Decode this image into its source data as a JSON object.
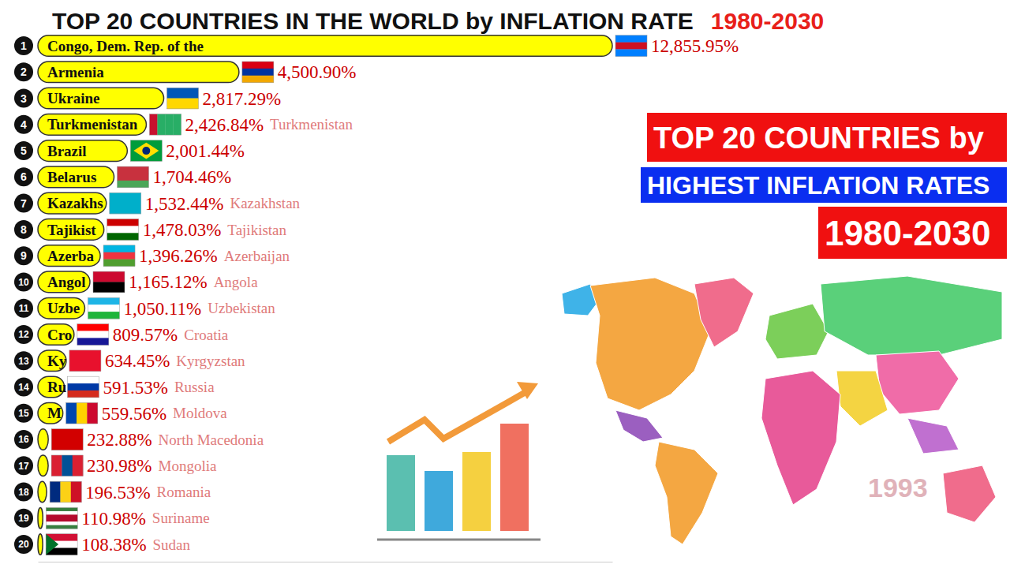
{
  "chart_data": {
    "type": "bar",
    "orientation": "horizontal",
    "title": "TOP 20 COUNTRIES IN THE WORLD by INFLATION RATE",
    "subtitle": "1980-2030",
    "annotations": [
      "TOP 20 COUNTRIES by",
      "HIGHEST INFLATION RATES",
      "1980-2030",
      "1993"
    ],
    "rank_labels": [
      "1",
      "2",
      "3",
      "4",
      "5",
      "6",
      "7",
      "8",
      "9",
      "10",
      "11",
      "12",
      "13",
      "14",
      "15",
      "16",
      "17",
      "18",
      "19",
      "20"
    ],
    "bar_labels": [
      "Congo, Dem. Rep. of the",
      "Armenia",
      "Ukraine",
      "Turkmenistan",
      "Brazil",
      "Belarus",
      "Kazakhs",
      "Tajikist",
      "Azerba",
      "Angol",
      "Uzbe",
      "Cro",
      "Ky",
      "Ru",
      "M",
      "",
      "",
      "",
      "",
      ""
    ],
    "categories": [
      null,
      null,
      null,
      "Turkmenistan",
      null,
      null,
      "Kazakhstan",
      "Tajikistan",
      "Azerbaijan",
      "Angola",
      "Uzbekistan",
      "Croatia",
      "Kyrgyzstan",
      "Russia",
      "Moldova",
      "North Macedonia",
      "Mongolia",
      "Romania",
      "Suriname",
      "Sudan"
    ],
    "values": [
      12855.95,
      4500.9,
      2817.29,
      2426.84,
      2001.44,
      1704.46,
      1532.44,
      1478.03,
      1396.26,
      1165.12,
      1050.11,
      809.57,
      634.45,
      591.53,
      559.56,
      232.88,
      230.98,
      196.53,
      110.98,
      108.38
    ],
    "value_labels": [
      "12,855.95%",
      "4,500.90%",
      "2,817.29%",
      "2,426.84%",
      "2,001.44%",
      "1,704.46%",
      "1,532.44%",
      "1,478.03%",
      "1,396.26%",
      "1,165.12%",
      "1,050.11%",
      "809.57%",
      "634.45%",
      "591.53%",
      "559.56%",
      "232.88%",
      "230.98%",
      "196.53%",
      "110.98%",
      "108.38%"
    ],
    "data_labels": true,
    "color": "#ffff00",
    "xlim": [
      0,
      12855.95
    ],
    "xticks": [],
    "tick_labels": false,
    "grid": false
  }
}
